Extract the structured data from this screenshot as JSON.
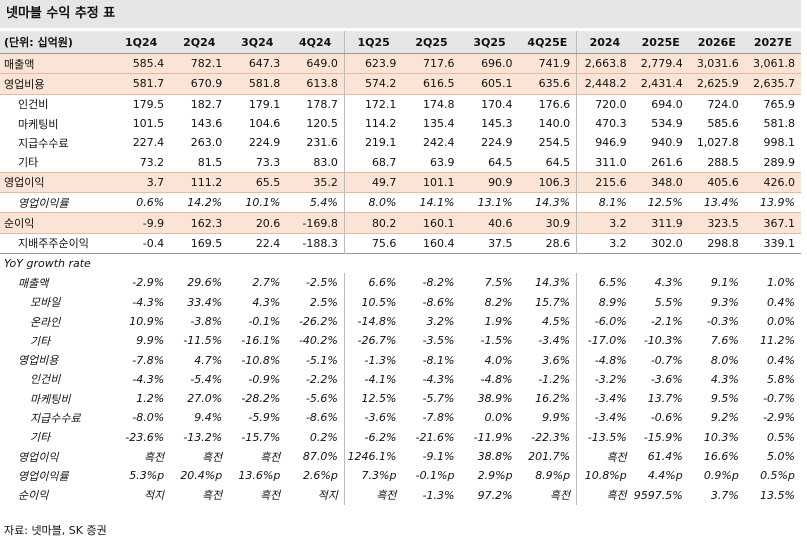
{
  "title": "넷마블 수익 추정 표",
  "table": {
    "header": [
      "(단위: 십억원)",
      "1Q24",
      "2Q24",
      "3Q24",
      "4Q24",
      "1Q25",
      "2Q25",
      "3Q25",
      "4Q25E",
      "2024",
      "2025E",
      "2026E",
      "2027E"
    ],
    "rows": [
      [
        "매출액",
        "585.4",
        "782.1",
        "647.3",
        "649.0",
        "623.9",
        "717.6",
        "696.0",
        "741.9",
        "2,663.8",
        "2,779.4",
        "3,031.6",
        "3,061.8"
      ],
      [
        "영업비용",
        "581.7",
        "670.9",
        "581.8",
        "613.8",
        "574.2",
        "616.5",
        "605.1",
        "635.6",
        "2,448.2",
        "2,431.4",
        "2,625.9",
        "2,635.7"
      ],
      [
        "인건비",
        "179.5",
        "182.7",
        "179.1",
        "178.7",
        "172.1",
        "174.8",
        "170.4",
        "176.6",
        "720.0",
        "694.0",
        "724.0",
        "765.9"
      ],
      [
        "마케팅비",
        "101.5",
        "143.6",
        "104.6",
        "120.5",
        "114.2",
        "135.4",
        "145.3",
        "140.0",
        "470.3",
        "534.9",
        "585.6",
        "581.8"
      ],
      [
        "지급수수료",
        "227.4",
        "263.0",
        "224.9",
        "231.6",
        "219.1",
        "242.4",
        "224.9",
        "254.5",
        "946.9",
        "940.9",
        "1,027.8",
        "998.1"
      ],
      [
        "기타",
        "73.2",
        "81.5",
        "73.3",
        "83.0",
        "68.7",
        "63.9",
        "64.5",
        "64.5",
        "311.0",
        "261.6",
        "288.5",
        "289.9"
      ],
      [
        "영업이익",
        "3.7",
        "111.2",
        "65.5",
        "35.2",
        "49.7",
        "101.1",
        "90.9",
        "106.3",
        "215.6",
        "348.0",
        "405.6",
        "426.0"
      ],
      [
        "영업이익률",
        "0.6%",
        "14.2%",
        "10.1%",
        "5.4%",
        "8.0%",
        "14.1%",
        "13.1%",
        "14.3%",
        "8.1%",
        "12.5%",
        "13.4%",
        "13.9%"
      ],
      [
        "순이익",
        "-9.9",
        "162.3",
        "20.6",
        "-169.8",
        "80.2",
        "160.1",
        "40.6",
        "30.9",
        "3.2",
        "311.9",
        "323.5",
        "367.1"
      ],
      [
        "지배주주순이익",
        "-0.4",
        "169.5",
        "22.4",
        "-188.3",
        "75.6",
        "160.4",
        "37.5",
        "28.6",
        "3.2",
        "302.0",
        "298.8",
        "339.1"
      ],
      [
        "YoY growth rate"
      ],
      [
        "매출액",
        "-2.9%",
        "29.6%",
        "2.7%",
        "-2.5%",
        "6.6%",
        "-8.2%",
        "7.5%",
        "14.3%",
        "6.5%",
        "4.3%",
        "9.1%",
        "1.0%"
      ],
      [
        "모바일",
        "-4.3%",
        "33.4%",
        "4.3%",
        "2.5%",
        "10.5%",
        "-8.6%",
        "8.2%",
        "15.7%",
        "8.9%",
        "5.5%",
        "9.3%",
        "0.4%"
      ],
      [
        "온라인",
        "10.9%",
        "-3.8%",
        "-0.1%",
        "-26.2%",
        "-14.8%",
        "3.2%",
        "1.9%",
        "4.5%",
        "-6.0%",
        "-2.1%",
        "-0.3%",
        "0.0%"
      ],
      [
        "기타",
        "9.9%",
        "-11.5%",
        "-16.1%",
        "-40.2%",
        "-26.7%",
        "-3.5%",
        "-1.5%",
        "-3.4%",
        "-17.0%",
        "-10.3%",
        "7.6%",
        "11.2%"
      ],
      [
        "영업비용",
        "-7.8%",
        "4.7%",
        "-10.8%",
        "-5.1%",
        "-1.3%",
        "-8.1%",
        "4.0%",
        "3.6%",
        "-4.8%",
        "-0.7%",
        "8.0%",
        "0.4%"
      ],
      [
        "인건비",
        "-4.3%",
        "-5.4%",
        "-0.9%",
        "-2.2%",
        "-4.1%",
        "-4.3%",
        "-4.8%",
        "-1.2%",
        "-3.2%",
        "-3.6%",
        "4.3%",
        "5.8%"
      ],
      [
        "마케팅비",
        "1.2%",
        "27.0%",
        "-28.2%",
        "-5.6%",
        "12.5%",
        "-5.7%",
        "38.9%",
        "16.2%",
        "-3.4%",
        "13.7%",
        "9.5%",
        "-0.7%"
      ],
      [
        "지급수수료",
        "-8.0%",
        "9.4%",
        "-5.9%",
        "-8.6%",
        "-3.6%",
        "-7.8%",
        "0.0%",
        "9.9%",
        "-3.4%",
        "-0.6%",
        "9.2%",
        "-2.9%"
      ],
      [
        "기타",
        "-23.6%",
        "-13.2%",
        "-15.7%",
        "0.2%",
        "-6.2%",
        "-21.6%",
        "-11.9%",
        "-22.3%",
        "-13.5%",
        "-15.9%",
        "10.3%",
        "0.5%"
      ],
      [
        "영업이익",
        "흑전",
        "흑전",
        "흑전",
        "87.0%",
        "1246.1%",
        "-9.1%",
        "38.8%",
        "201.7%",
        "흑전",
        "61.4%",
        "16.6%",
        "5.0%"
      ],
      [
        "영업이익률",
        "5.3%p",
        "20.4%p",
        "13.6%p",
        "2.6%p",
        "7.3%p",
        "-0.1%p",
        "2.9%p",
        "8.9%p",
        "10.8%p",
        "4.4%p",
        "0.9%p",
        "0.5%p"
      ],
      [
        "순이익",
        "적지",
        "흑전",
        "흑전",
        "적지",
        "흑전",
        "-1.3%",
        "97.2%",
        "흑전",
        "흑전",
        "9597.5%",
        "3.7%",
        "13.5%"
      ]
    ]
  },
  "source": "자료: 넷마블, SK 증권"
}
